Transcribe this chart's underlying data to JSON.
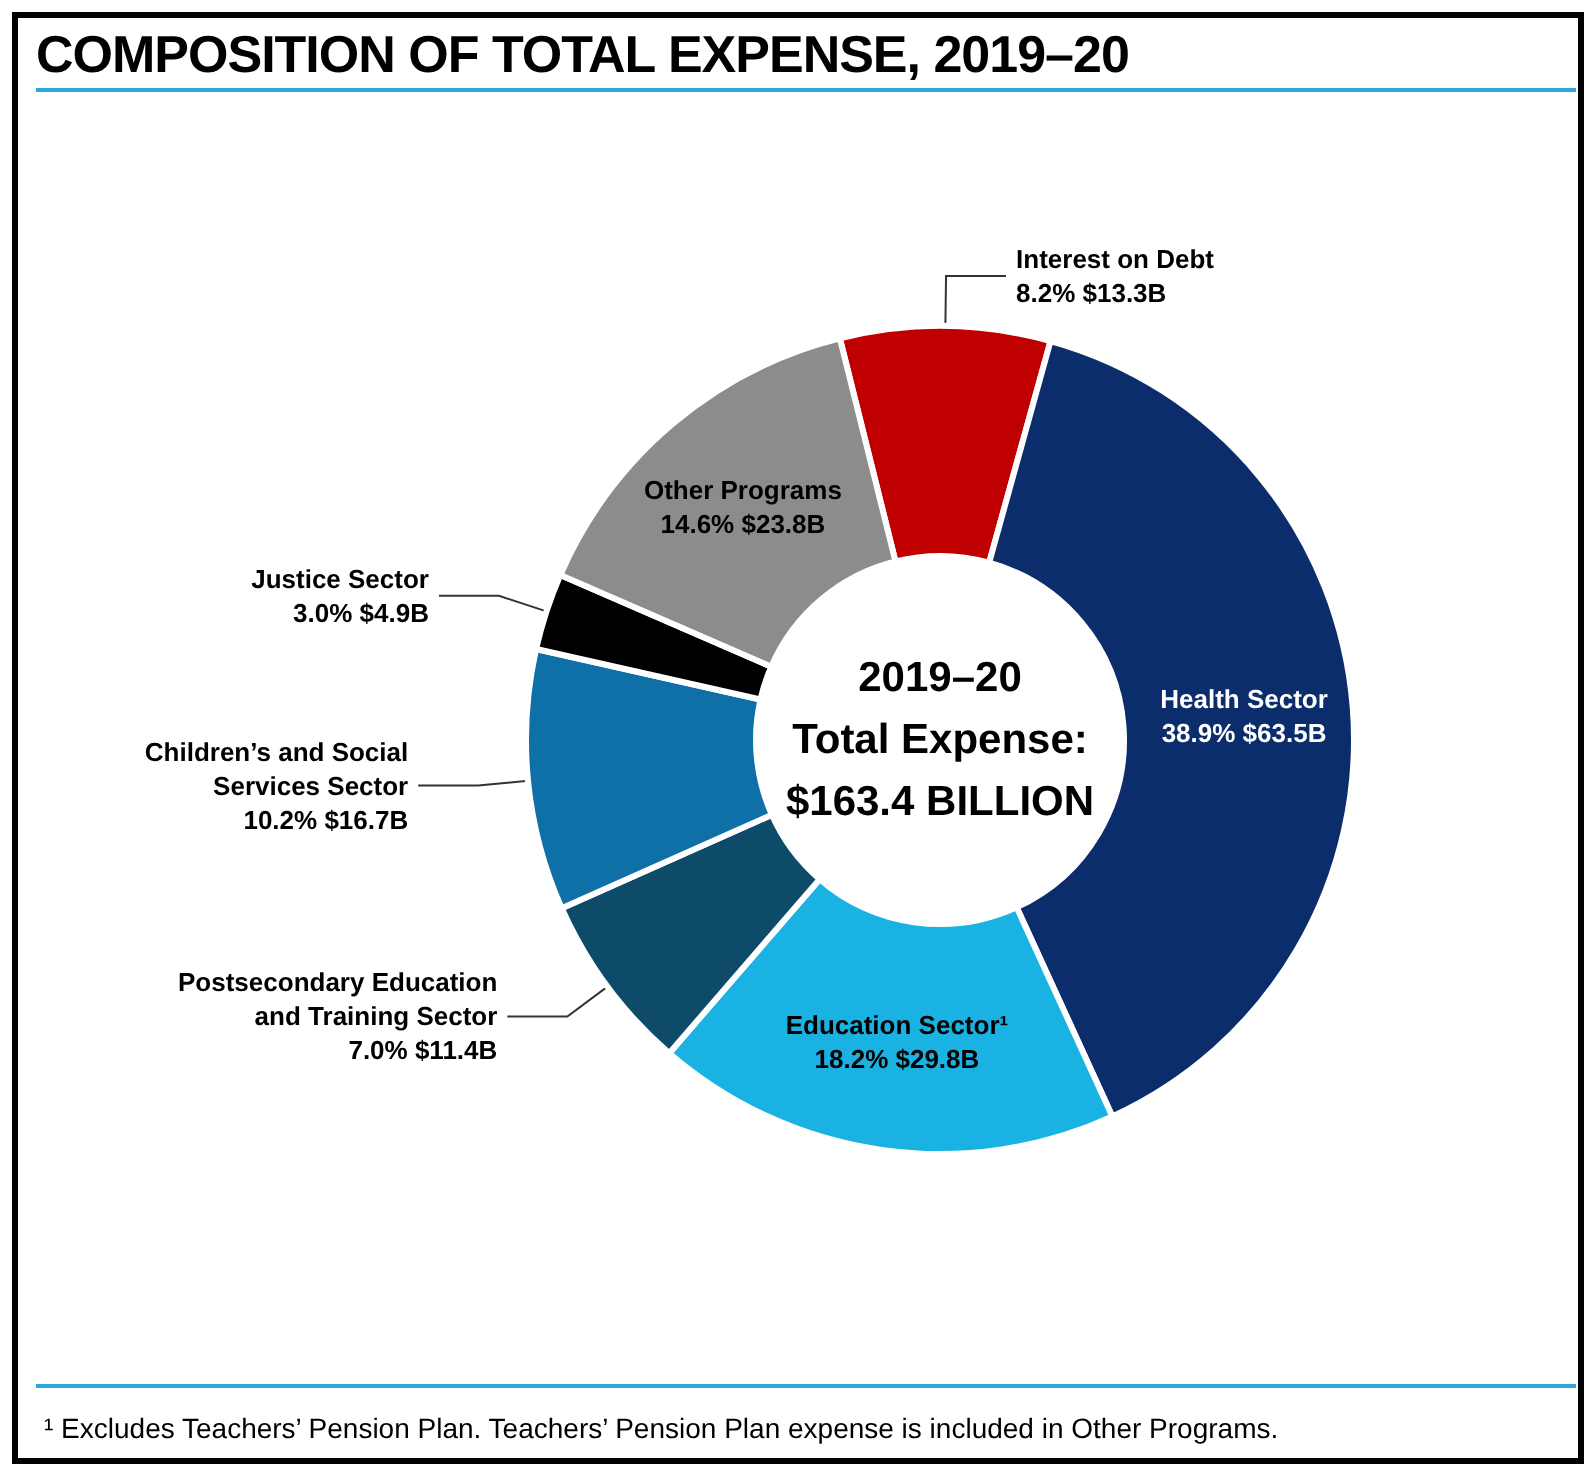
{
  "chart_data": {
    "type": "donut",
    "title": "COMPOSITION OF TOTAL EXPENSE, 2019–20",
    "categories": [
      "Interest on Debt",
      "Health Sector",
      "Education Sector¹",
      "Postsecondary Education and Training Sector",
      "Children’s and Social Services Sector",
      "Justice Sector",
      "Other Programs"
    ],
    "values": [
      8.2,
      38.9,
      18.2,
      7.0,
      10.2,
      3.0,
      14.6
    ],
    "value_labels": [
      "8.2% $13.3B",
      "38.9% $63.5B",
      "18.2% $29.8B",
      "7.0% $11.4B",
      "10.2% $16.7B",
      "3.0% $4.9B",
      "14.6% $23.8B"
    ],
    "colors": [
      "#c00000",
      "#0b2d6b",
      "#19b2e3",
      "#0d4b68",
      "#0f70a8",
      "#000000",
      "#8c8c8c"
    ],
    "annotations": [
      "2019–20",
      "Total Expense:",
      "$163.4 BILLION",
      "¹ Excludes Teachers’ Pension Plan. Teachers’ Pension Plan expense is included in Other Programs."
    ],
    "legend": false
  }
}
